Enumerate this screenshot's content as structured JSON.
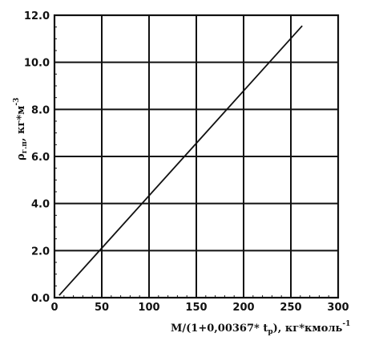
{
  "chart_data": {
    "type": "line",
    "xlim": [
      0,
      300
    ],
    "ylim": [
      0,
      12
    ],
    "x_ticks": [
      0,
      50,
      100,
      150,
      200,
      250,
      300
    ],
    "y_ticks": [
      0,
      2,
      4,
      6,
      8,
      10,
      12
    ],
    "x_tick_labels": [
      "0",
      "50",
      "100",
      "150",
      "200",
      "250",
      "300"
    ],
    "y_tick_labels": [
      "0.0",
      "2.0",
      "4.0",
      "6.0",
      "8.0",
      "10.0",
      "12.0"
    ],
    "grid": true,
    "series": [
      {
        "x": [
          5,
          262
        ],
        "y": [
          0.1,
          11.55
        ]
      }
    ],
    "xlabel": {
      "text": "M/(1+0,00367* t",
      "sub": "p",
      "rest": "),  кг*кмоль",
      "sup": "-1"
    },
    "ylabel": {
      "text": "ρ",
      "sub": "г.п",
      "rest": ",  кг*м",
      "sup": "-3"
    }
  }
}
